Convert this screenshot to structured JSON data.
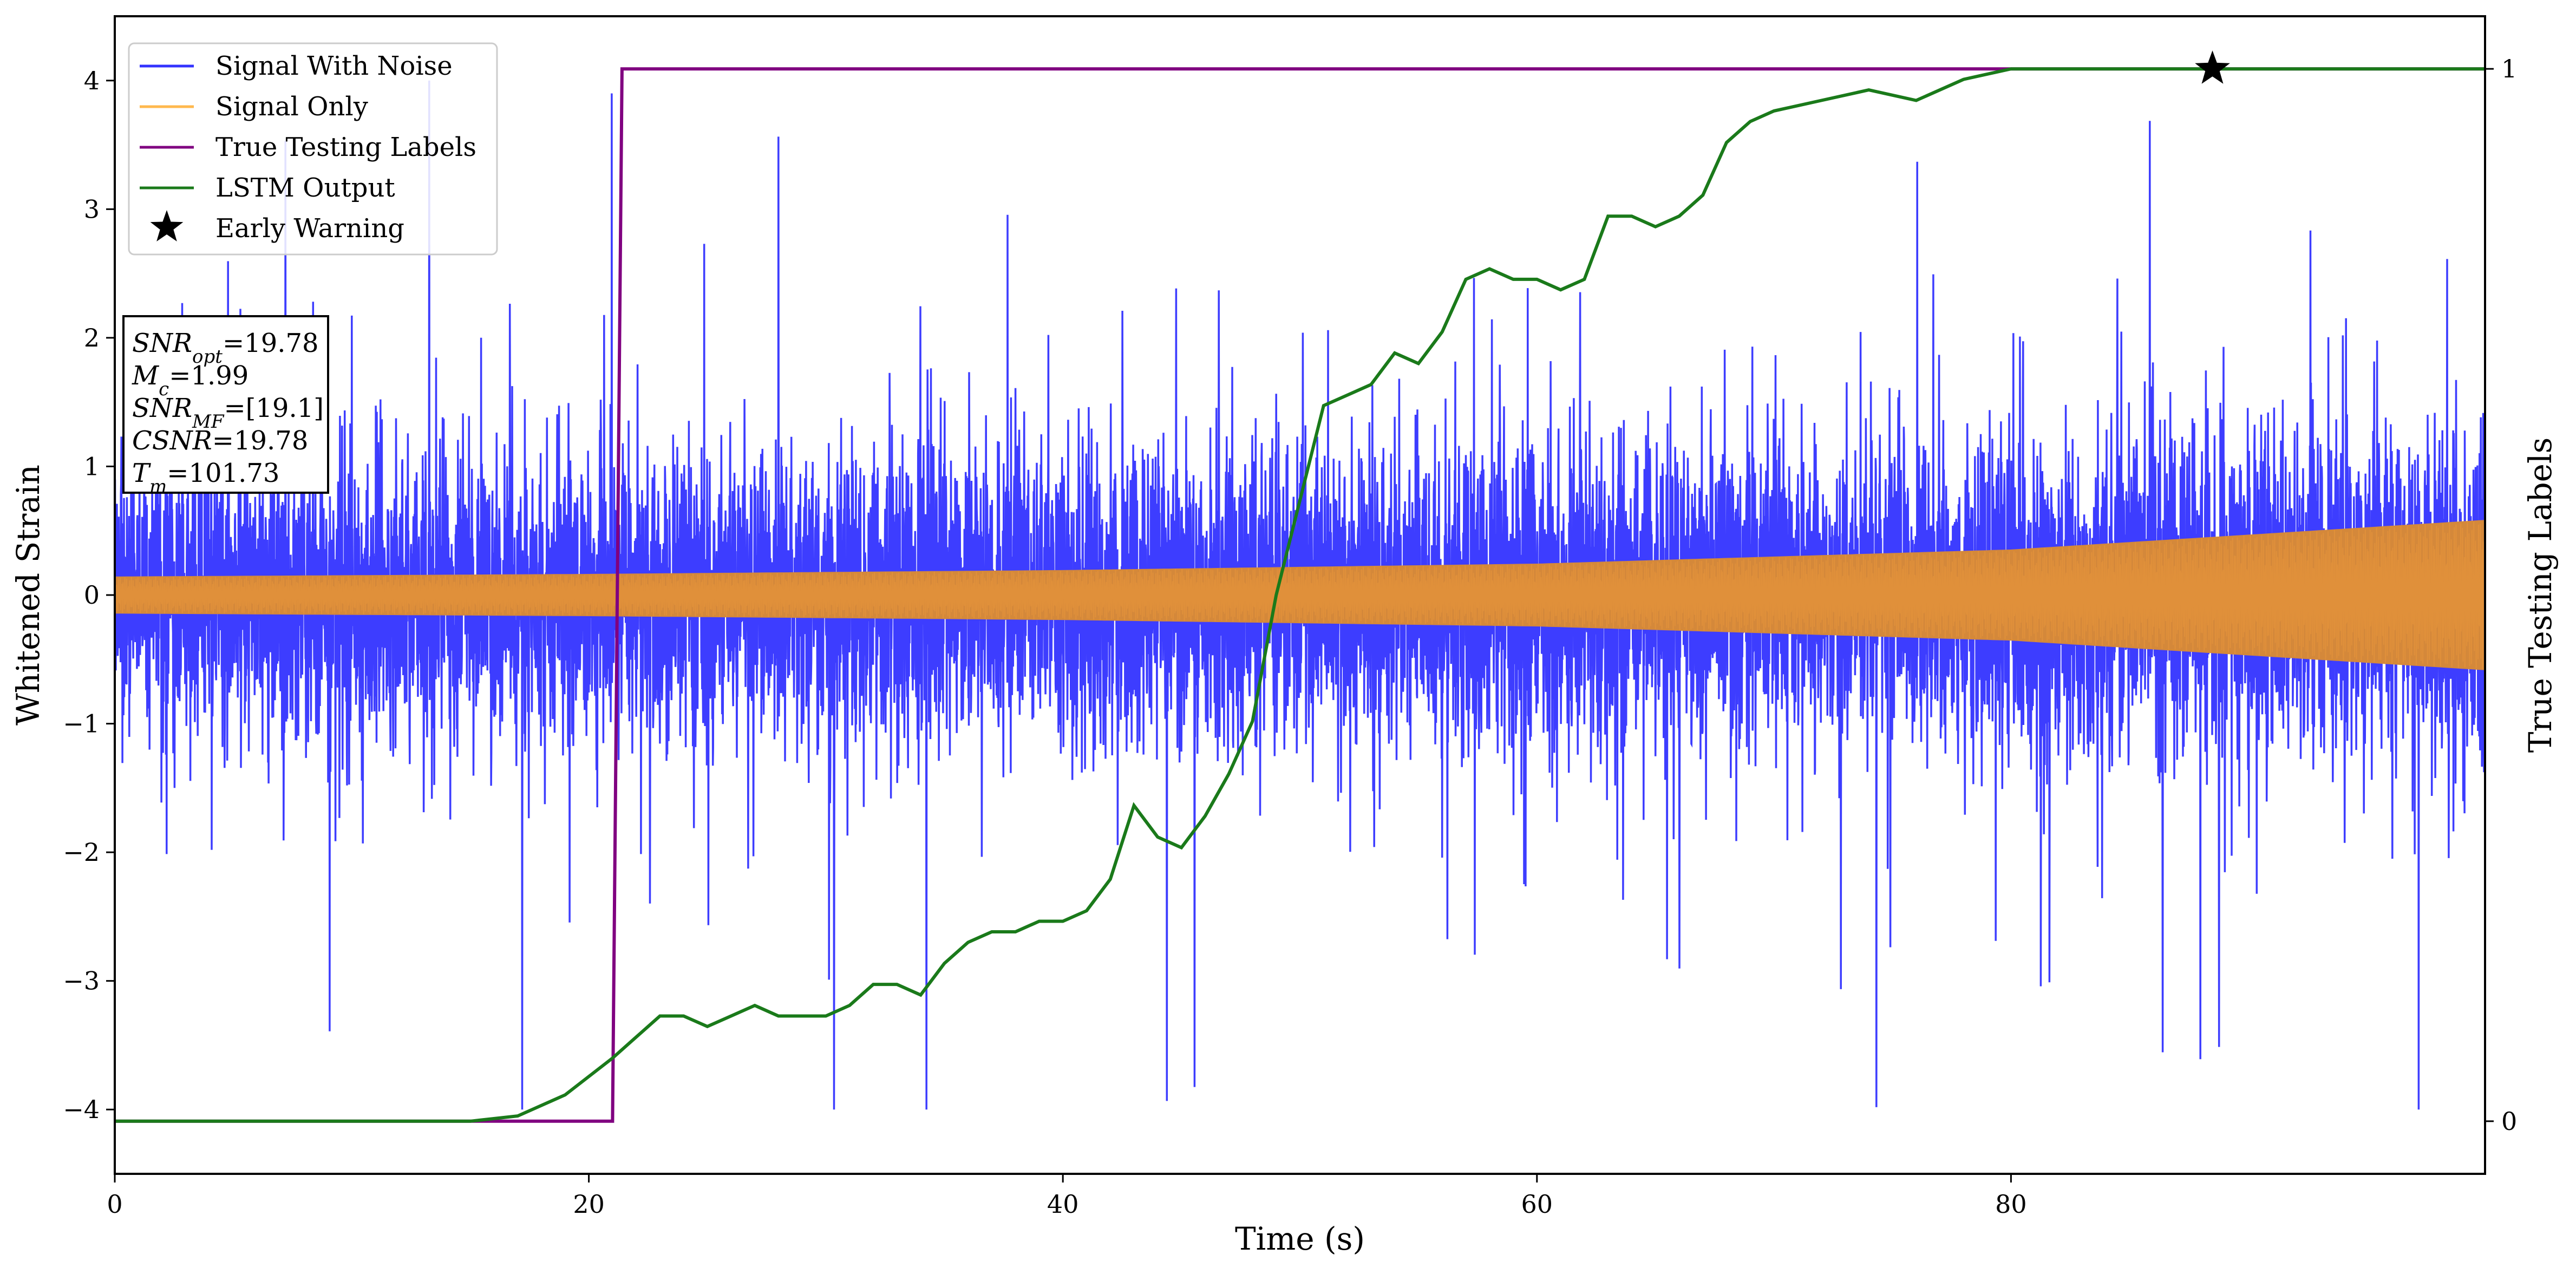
{
  "chart_data": {
    "type": "line",
    "xlabel": "Time (s)",
    "ylabel": "Whitened Strain",
    "y2label": "True Testing Labels",
    "xlim": [
      0,
      100
    ],
    "ylim": [
      -4.5,
      4.5
    ],
    "y2lim": [
      -0.05,
      1.05
    ],
    "xticks": [
      0,
      20,
      40,
      60,
      80
    ],
    "yticks": [
      -4,
      -3,
      -2,
      -1,
      0,
      1,
      2,
      3,
      4
    ],
    "y2ticks": [
      0,
      1
    ],
    "legend_position": "top-left",
    "legend": [
      "Signal With Noise",
      "Signal Only",
      "True Testing Labels",
      "LSTM Output",
      "Early Warning"
    ],
    "colors": {
      "signal_with_noise": "#3333ff",
      "signal_only": "#d4883a",
      "signal_only_legend": "#ffb84d",
      "true_testing_labels": "#800080",
      "lstm_output": "#1a7a1a",
      "early_warning": "#000000"
    },
    "annotation": {
      "lines": [
        {
          "symbol": "SNR",
          "sub": "opt",
          "value": "=19.78"
        },
        {
          "symbol": "M",
          "sub": "c",
          "value": "=1.99"
        },
        {
          "symbol": "SNR",
          "sub": "MF",
          "value": "=[19.1]"
        },
        {
          "symbol": "CSNR",
          "sub": "",
          "value": "=19.78"
        },
        {
          "symbol": "T",
          "sub": "m",
          "value": "=101.73"
        }
      ]
    },
    "series": [
      {
        "name": "Signal With Noise",
        "noise_std": 0.55,
        "max_abs": 4.0
      },
      {
        "name": "Signal Only",
        "envelope_x": [
          0,
          20,
          40,
          60,
          80,
          100
        ],
        "envelope_amplitude": [
          0.14,
          0.16,
          0.19,
          0.24,
          0.35,
          0.58
        ]
      },
      {
        "name": "True Testing Labels",
        "x": [
          0,
          21.0,
          21.4,
          100
        ],
        "y": [
          0,
          0,
          1,
          1
        ]
      },
      {
        "name": "LSTM Output",
        "x": [
          0,
          15,
          17,
          19,
          21,
          22,
          23,
          24,
          25,
          26,
          27,
          28,
          29,
          30,
          31,
          32,
          33,
          34,
          35,
          36,
          37,
          38,
          39,
          40,
          41,
          42,
          43,
          44,
          45,
          46,
          47,
          48,
          49,
          50,
          51,
          52,
          53,
          54,
          55,
          56,
          57,
          58,
          59,
          60,
          61,
          62,
          63,
          64,
          65,
          66,
          67,
          68,
          69,
          70,
          72,
          74,
          76,
          78,
          80,
          85,
          90,
          100
        ],
        "y": [
          0,
          0,
          0.005,
          0.025,
          0.06,
          0.08,
          0.1,
          0.1,
          0.09,
          0.1,
          0.11,
          0.1,
          0.1,
          0.1,
          0.11,
          0.13,
          0.13,
          0.12,
          0.15,
          0.17,
          0.18,
          0.18,
          0.19,
          0.19,
          0.2,
          0.23,
          0.3,
          0.27,
          0.26,
          0.29,
          0.33,
          0.38,
          0.5,
          0.59,
          0.68,
          0.69,
          0.7,
          0.73,
          0.72,
          0.75,
          0.8,
          0.81,
          0.8,
          0.8,
          0.79,
          0.8,
          0.86,
          0.86,
          0.85,
          0.86,
          0.88,
          0.93,
          0.95,
          0.96,
          0.97,
          0.98,
          0.97,
          0.99,
          1.0,
          1.0,
          1.0,
          1.0
        ]
      },
      {
        "name": "Early Warning",
        "x": [
          88.5
        ],
        "y": [
          1.0
        ]
      }
    ]
  }
}
